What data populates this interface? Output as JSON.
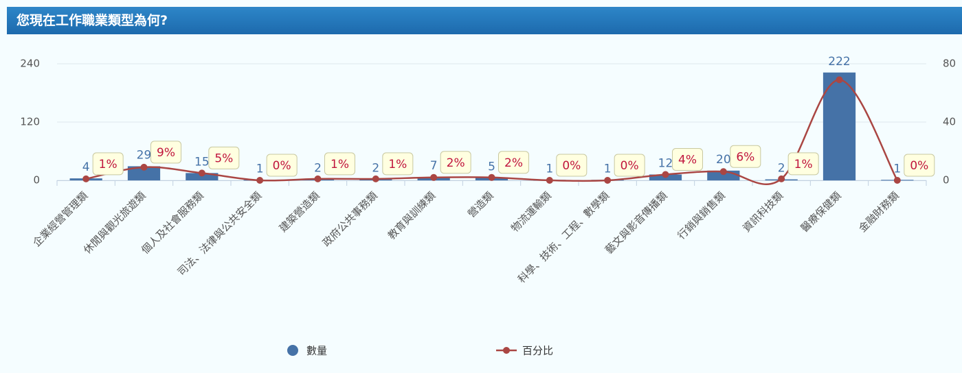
{
  "header": {
    "title": "您現在工作職業類型為何?"
  },
  "chart_data": {
    "type": "bar-line",
    "categories": [
      "企業經營管理類",
      "休閒與觀光旅遊類",
      "個人及社會服務類",
      "司法、法律與公共安全類",
      "建築營造類",
      "政府公共事務類",
      "教育與訓練類",
      "營造類",
      "物流運輸類",
      "科學、技術、工程、數學類",
      "藝文與影音傳播類",
      "行銷與銷售類",
      "資訊科技類",
      "醫療保健類",
      "金融財務類"
    ],
    "series": [
      {
        "name": "數量",
        "color": "#4572a7",
        "values": [
          4,
          29,
          15,
          1,
          2,
          2,
          7,
          5,
          1,
          1,
          12,
          20,
          2,
          222,
          1
        ]
      },
      {
        "name": "百分比",
        "color": "#aa4643",
        "axis": "y2",
        "values": [
          1,
          9,
          5,
          0,
          1,
          1,
          2,
          2,
          0,
          0,
          4,
          6,
          1,
          69,
          0
        ],
        "value_labels": [
          "1%",
          "9%",
          "5%",
          "0%",
          "1%",
          "1%",
          "2%",
          "2%",
          "0%",
          "0%",
          "4%",
          "6%",
          "1%",
          null,
          "0%"
        ]
      }
    ],
    "ylim": [
      0,
      240
    ],
    "yticks": [
      0,
      120,
      240
    ],
    "y2lim": [
      0,
      80
    ],
    "y2ticks": [
      0,
      40,
      80
    ],
    "grid": true,
    "legend": "bottom"
  }
}
